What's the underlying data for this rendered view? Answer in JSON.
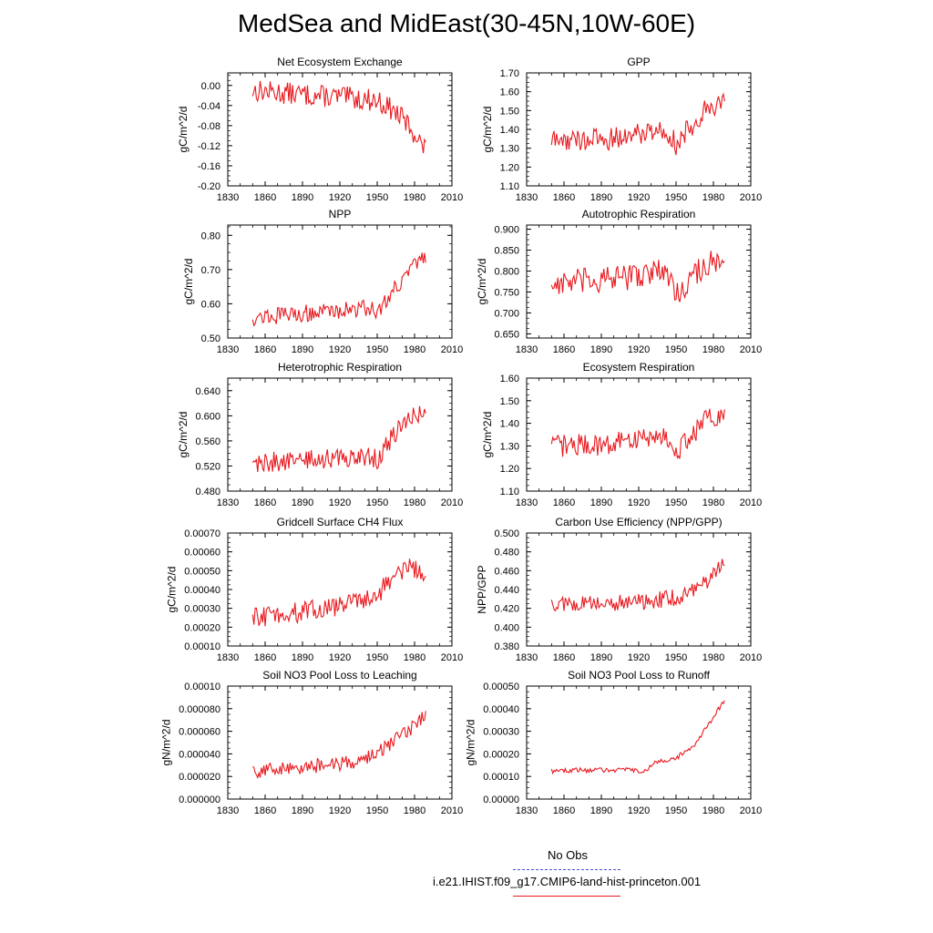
{
  "title": "MedSea and MidEast(30-45N,10W-60E)",
  "legend": {
    "obs_label": "No Obs",
    "case_label": "i.e21.IHIST.f09_g17.CMIP6-land-hist-princeton.001",
    "obs_color": "#4b4bd8",
    "case_color": "#e8191e"
  },
  "chart_data": [
    {
      "type": "line",
      "title": "Net Ecosystem Exchange",
      "ylabel": "gC/m^2/d",
      "xlim": [
        1830,
        2010
      ],
      "xticks": [
        "1830",
        "1860",
        "1890",
        "1920",
        "1950",
        "1980",
        "2010"
      ],
      "ylim": [
        -0.2,
        0.025
      ],
      "yticks": [
        "-0.20",
        "-0.16",
        "-0.12",
        "-0.08",
        "-0.04",
        "0.00"
      ],
      "x_start": 1850,
      "x_end": 1989,
      "keypoints": [
        [
          1850,
          -0.01
        ],
        [
          1900,
          -0.02
        ],
        [
          1930,
          -0.025
        ],
        [
          1950,
          -0.03
        ],
        [
          1960,
          -0.045
        ],
        [
          1970,
          -0.065
        ],
        [
          1980,
          -0.095
        ],
        [
          1989,
          -0.13
        ]
      ],
      "noise": 0.022,
      "color": "#e8191e"
    },
    {
      "type": "line",
      "title": "GPP",
      "ylabel": "gC/m^2/d",
      "xlim": [
        1830,
        2010
      ],
      "xticks": [
        "1830",
        "1860",
        "1890",
        "1920",
        "1950",
        "1980",
        "2010"
      ],
      "ylim": [
        1.1,
        1.7
      ],
      "yticks": [
        "1.10",
        "1.20",
        "1.30",
        "1.40",
        "1.50",
        "1.60",
        "1.70"
      ],
      "x_start": 1850,
      "x_end": 1989,
      "keypoints": [
        [
          1850,
          1.34
        ],
        [
          1900,
          1.35
        ],
        [
          1935,
          1.4
        ],
        [
          1945,
          1.38
        ],
        [
          1950,
          1.32
        ],
        [
          1960,
          1.4
        ],
        [
          1975,
          1.52
        ],
        [
          1989,
          1.55
        ]
      ],
      "noise": 0.06,
      "color": "#e8191e"
    },
    {
      "type": "line",
      "title": "NPP",
      "ylabel": "gC/m^2/d",
      "xlim": [
        1830,
        2010
      ],
      "xticks": [
        "1830",
        "1860",
        "1890",
        "1920",
        "1950",
        "1980",
        "2010"
      ],
      "ylim": [
        0.5,
        0.83
      ],
      "yticks": [
        "0.50",
        "0.60",
        "0.70",
        "0.80"
      ],
      "x_start": 1850,
      "x_end": 1989,
      "keypoints": [
        [
          1850,
          0.56
        ],
        [
          1900,
          0.575
        ],
        [
          1945,
          0.59
        ],
        [
          1950,
          0.57
        ],
        [
          1960,
          0.63
        ],
        [
          1975,
          0.69
        ],
        [
          1989,
          0.74
        ]
      ],
      "noise": 0.025,
      "color": "#e8191e"
    },
    {
      "type": "line",
      "title": "Autotrophic Respiration",
      "ylabel": "gC/m^2/d",
      "xlim": [
        1830,
        2010
      ],
      "xticks": [
        "1830",
        "1860",
        "1890",
        "1920",
        "1950",
        "1980",
        "2010"
      ],
      "ylim": [
        0.64,
        0.91
      ],
      "yticks": [
        "0.650",
        "0.700",
        "0.750",
        "0.800",
        "0.850",
        "0.900"
      ],
      "x_start": 1850,
      "x_end": 1989,
      "keypoints": [
        [
          1850,
          0.77
        ],
        [
          1900,
          0.78
        ],
        [
          1935,
          0.8
        ],
        [
          1945,
          0.79
        ],
        [
          1950,
          0.74
        ],
        [
          1960,
          0.78
        ],
        [
          1975,
          0.82
        ],
        [
          1989,
          0.81
        ]
      ],
      "noise": 0.032,
      "color": "#e8191e"
    },
    {
      "type": "line",
      "title": "Heterotrophic Respiration",
      "ylabel": "gC/m^2/d",
      "xlim": [
        1830,
        2010
      ],
      "xticks": [
        "1830",
        "1860",
        "1890",
        "1920",
        "1950",
        "1980",
        "2010"
      ],
      "ylim": [
        0.48,
        0.66
      ],
      "yticks": [
        "0.480",
        "0.520",
        "0.560",
        "0.600",
        "0.640"
      ],
      "x_start": 1850,
      "x_end": 1989,
      "keypoints": [
        [
          1850,
          0.525
        ],
        [
          1900,
          0.53
        ],
        [
          1945,
          0.535
        ],
        [
          1950,
          0.53
        ],
        [
          1960,
          0.56
        ],
        [
          1975,
          0.595
        ],
        [
          1989,
          0.61
        ]
      ],
      "noise": 0.016,
      "color": "#e8191e"
    },
    {
      "type": "line",
      "title": "Ecosystem Respiration",
      "ylabel": "gC/m^2/d",
      "xlim": [
        1830,
        2010
      ],
      "xticks": [
        "1830",
        "1860",
        "1890",
        "1920",
        "1950",
        "1980",
        "2010"
      ],
      "ylim": [
        1.1,
        1.6
      ],
      "yticks": [
        "1.10",
        "1.20",
        "1.30",
        "1.40",
        "1.50",
        "1.60"
      ],
      "x_start": 1850,
      "x_end": 1989,
      "keypoints": [
        [
          1850,
          1.3
        ],
        [
          1900,
          1.31
        ],
        [
          1935,
          1.35
        ],
        [
          1945,
          1.33
        ],
        [
          1950,
          1.27
        ],
        [
          1960,
          1.33
        ],
        [
          1975,
          1.42
        ],
        [
          1989,
          1.42
        ]
      ],
      "noise": 0.05,
      "color": "#e8191e"
    },
    {
      "type": "line",
      "title": "Gridcell Surface CH4 Flux",
      "ylabel": "gC/m^2/d",
      "xlim": [
        1830,
        2010
      ],
      "xticks": [
        "1830",
        "1860",
        "1890",
        "1920",
        "1950",
        "1980",
        "2010"
      ],
      "ylim": [
        0.0001,
        0.0007
      ],
      "yticks": [
        "0.00010",
        "0.00020",
        "0.00030",
        "0.00040",
        "0.00050",
        "0.00060",
        "0.00070"
      ],
      "x_start": 1850,
      "x_end": 1989,
      "keypoints": [
        [
          1850,
          0.00025
        ],
        [
          1900,
          0.00029
        ],
        [
          1930,
          0.00033
        ],
        [
          1950,
          0.00037
        ],
        [
          1960,
          0.00045
        ],
        [
          1975,
          0.00052
        ],
        [
          1989,
          0.00047
        ]
      ],
      "noise": 5.5e-05,
      "color": "#e8191e"
    },
    {
      "type": "line",
      "title": "Carbon Use Efficiency (NPP/GPP)",
      "ylabel": "NPP/GPP",
      "xlim": [
        1830,
        2010
      ],
      "xticks": [
        "1830",
        "1860",
        "1890",
        "1920",
        "1950",
        "1980",
        "2010"
      ],
      "ylim": [
        0.38,
        0.5
      ],
      "yticks": [
        "0.380",
        "0.400",
        "0.420",
        "0.440",
        "0.460",
        "0.480",
        "0.500"
      ],
      "x_start": 1850,
      "x_end": 1989,
      "keypoints": [
        [
          1850,
          0.425
        ],
        [
          1900,
          0.425
        ],
        [
          1930,
          0.428
        ],
        [
          1950,
          0.432
        ],
        [
          1965,
          0.44
        ],
        [
          1980,
          0.455
        ],
        [
          1989,
          0.472
        ]
      ],
      "noise": 0.009,
      "color": "#e8191e"
    },
    {
      "type": "line",
      "title": "Soil NO3 Pool Loss to Leaching",
      "ylabel": "gN/m^2/d",
      "xlim": [
        1830,
        2010
      ],
      "xticks": [
        "1830",
        "1860",
        "1890",
        "1920",
        "1950",
        "1980",
        "2010"
      ],
      "ylim": [
        0.0,
        0.0001
      ],
      "yticks": [
        "0.000000",
        "0.000020",
        "0.000040",
        "0.000060",
        "0.000080",
        "0.00010"
      ],
      "x_start": 1850,
      "x_end": 1989,
      "keypoints": [
        [
          1850,
          2.5e-05
        ],
        [
          1900,
          2.9e-05
        ],
        [
          1930,
          3.3e-05
        ],
        [
          1950,
          4e-05
        ],
        [
          1965,
          5.2e-05
        ],
        [
          1980,
          6.5e-05
        ],
        [
          1989,
          7.5e-05
        ]
      ],
      "noise": 6.5e-06,
      "color": "#e8191e"
    },
    {
      "type": "line",
      "title": "Soil NO3 Pool Loss to Runoff",
      "ylabel": "gN/m^2/d",
      "xlim": [
        1830,
        2010
      ],
      "xticks": [
        "1830",
        "1860",
        "1890",
        "1920",
        "1950",
        "1980",
        "2010"
      ],
      "ylim": [
        0.0,
        0.0005
      ],
      "yticks": [
        "0.00000",
        "0.00010",
        "0.00020",
        "0.00030",
        "0.00040",
        "0.00050"
      ],
      "x_start": 1850,
      "x_end": 1989,
      "keypoints": [
        [
          1850,
          0.000125
        ],
        [
          1900,
          0.00013
        ],
        [
          1925,
          0.000125
        ],
        [
          1935,
          0.000165
        ],
        [
          1950,
          0.00018
        ],
        [
          1965,
          0.00024
        ],
        [
          1975,
          0.00032
        ],
        [
          1989,
          0.00044
        ]
      ],
      "noise": 1.1e-05,
      "color": "#e8191e"
    }
  ]
}
